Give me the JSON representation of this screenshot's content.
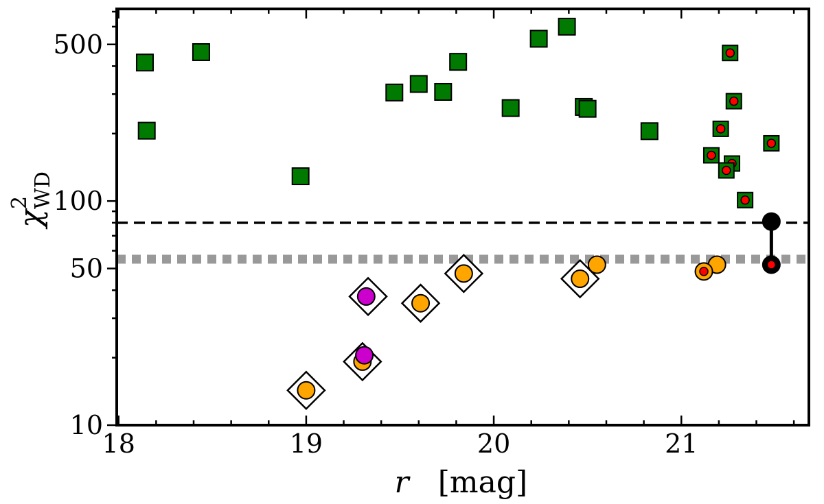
{
  "chart_data": {
    "type": "scatter",
    "xlabel_symbol": "r",
    "xlabel_unit": "[mag]",
    "ylabel_base": "χ",
    "ylabel_sup": "2",
    "ylabel_sub": "WD",
    "xlim": [
      17.99,
      21.68
    ],
    "ylim": [
      10,
      720
    ],
    "yscale": "log",
    "x_ticks": [
      18,
      19,
      20,
      21
    ],
    "x_tick_labels": [
      "18",
      "19",
      "20",
      "21"
    ],
    "y_ticks": [
      10,
      50,
      100,
      500
    ],
    "y_tick_labels": [
      "10",
      "50",
      "100",
      "500"
    ],
    "reference_lines": [
      {
        "name": "dashed-threshold",
        "y": 80,
        "style": "dashed",
        "color": "#000000"
      },
      {
        "name": "dotted-threshold",
        "y": 55,
        "style": "dotted",
        "color": "#999999"
      }
    ],
    "series": [
      {
        "name": "green-squares",
        "marker": "square",
        "color": "#007a00",
        "points": [
          {
            "x": 18.14,
            "y": 415
          },
          {
            "x": 18.15,
            "y": 206
          },
          {
            "x": 18.44,
            "y": 462
          },
          {
            "x": 18.97,
            "y": 129
          },
          {
            "x": 19.47,
            "y": 305
          },
          {
            "x": 19.6,
            "y": 333
          },
          {
            "x": 19.73,
            "y": 307
          },
          {
            "x": 19.81,
            "y": 418
          },
          {
            "x": 20.09,
            "y": 260
          },
          {
            "x": 20.24,
            "y": 530
          },
          {
            "x": 20.39,
            "y": 600
          },
          {
            "x": 20.48,
            "y": 263
          },
          {
            "x": 20.5,
            "y": 258
          },
          {
            "x": 20.83,
            "y": 205
          }
        ]
      },
      {
        "name": "green-squares-with-red-dot",
        "marker": "square-red-dot",
        "color": "#007a00",
        "inner_color": "#ff0000",
        "points": [
          {
            "x": 21.26,
            "y": 458
          },
          {
            "x": 21.28,
            "y": 279
          },
          {
            "x": 21.21,
            "y": 210
          },
          {
            "x": 21.16,
            "y": 160
          },
          {
            "x": 21.27,
            "y": 147
          },
          {
            "x": 21.24,
            "y": 137
          },
          {
            "x": 21.34,
            "y": 101
          },
          {
            "x": 21.48,
            "y": 181
          }
        ]
      },
      {
        "name": "orange-circles",
        "marker": "circle",
        "color": "#ffa500",
        "points": [
          {
            "x": 19.0,
            "y": 14.3
          },
          {
            "x": 19.3,
            "y": 19.2
          },
          {
            "x": 19.61,
            "y": 35
          },
          {
            "x": 19.84,
            "y": 47.5
          },
          {
            "x": 20.46,
            "y": 45
          },
          {
            "x": 20.55,
            "y": 52
          },
          {
            "x": 21.19,
            "y": 52
          }
        ]
      },
      {
        "name": "orange-circle-with-red-dot",
        "marker": "circle-red-dot",
        "color": "#ffa500",
        "inner_color": "#ff0000",
        "points": [
          {
            "x": 21.12,
            "y": 48.5
          }
        ]
      },
      {
        "name": "magenta-circles",
        "marker": "circle",
        "color": "#cc00cc",
        "points": [
          {
            "x": 19.32,
            "y": 37.5
          },
          {
            "x": 19.31,
            "y": 20.5
          }
        ]
      },
      {
        "name": "open-diamonds",
        "marker": "diamond",
        "color": "#000000",
        "points": [
          {
            "x": 19.0,
            "y": 14.3
          },
          {
            "x": 19.3,
            "y": 19.2
          },
          {
            "x": 19.33,
            "y": 37.5
          },
          {
            "x": 19.61,
            "y": 35
          },
          {
            "x": 19.84,
            "y": 47.5
          },
          {
            "x": 20.46,
            "y": 45
          }
        ]
      },
      {
        "name": "black-connected-pair",
        "marker": "circle-connected",
        "color": "#000000",
        "inner_color": "#ff0000",
        "points": [
          {
            "x": 21.48,
            "y": 81
          },
          {
            "x": 21.48,
            "y": 52
          }
        ]
      }
    ]
  }
}
